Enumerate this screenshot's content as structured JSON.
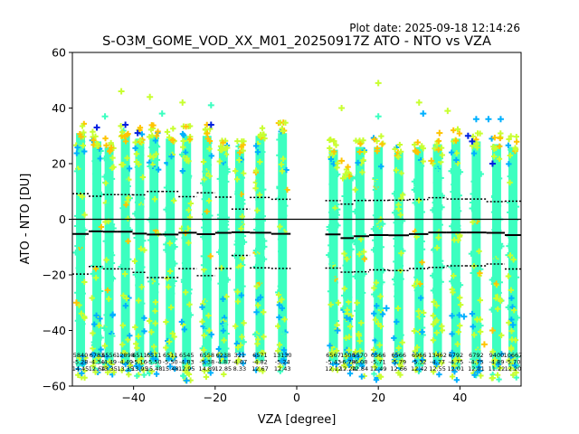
{
  "plot_date": "Plot date: 2025-09-18 12:14:26",
  "title": "S-O3M_GOME_VOD_XX_M01_20250917Z ATO - NTO vs VZA",
  "chart_data": {
    "type": "scatter",
    "title": "S-O3M_GOME_VOD_XX_M01_20250917Z ATO - NTO vs VZA",
    "xlabel": "VZA [degree]",
    "ylabel": "ATO - NTO [DU]",
    "xlim": [
      -55,
      55
    ],
    "ylim": [
      -60,
      60
    ],
    "xticks": [
      -40,
      -20,
      0,
      20,
      40
    ],
    "yticks": [
      -60,
      -40,
      -20,
      0,
      20,
      40,
      60
    ],
    "grid": false,
    "zero_line": 0,
    "marker": "+",
    "colors": {
      "dense": "#3cffc0",
      "medium": "#c8ff30",
      "sparse_warm": "#ffc400",
      "sparse_cool": "#00b0ff",
      "rare": "#0020e0",
      "mean_line": "#000000"
    },
    "bins": [
      {
        "x": -53,
        "n": "5840",
        "mean": -5.28,
        "std": 14.45,
        "ymin": -57,
        "ymax": 35
      },
      {
        "x": -49,
        "n": "6783",
        "mean": -4.34,
        "std": 12.64,
        "ymin": -56,
        "ymax": 32
      },
      {
        "x": -46,
        "n": "6556",
        "mean": -4.49,
        "std": 13.35,
        "ymin": -56,
        "ymax": 30
      },
      {
        "x": -42,
        "n": "12898",
        "mean": -4.49,
        "std": 13.35,
        "ymin": -56,
        "ymax": 34
      },
      {
        "x": -38.5,
        "n": "6511",
        "mean": -5.16,
        "std": 13.95,
        "ymin": -57,
        "ymax": 33
      },
      {
        "x": -35,
        "n": "6511",
        "mean": -5.5,
        "std": 15.48,
        "ymin": -56,
        "ymax": 34
      },
      {
        "x": -31,
        "n": "6511",
        "mean": -5.5,
        "std": 15.48,
        "ymin": -55,
        "ymax": 33
      },
      {
        "x": -27,
        "n": "6545",
        "mean": -4.83,
        "std": 12.95,
        "ymin": -58,
        "ymax": 34
      },
      {
        "x": -22,
        "n": "6558",
        "mean": -5.38,
        "std": 14.89,
        "ymin": -57,
        "ymax": 34
      },
      {
        "x": -18,
        "n": "6238",
        "mean": -4.87,
        "std": 12.85,
        "ymin": -56,
        "ymax": 30
      },
      {
        "x": -14,
        "n": "321",
        "mean": -4.67,
        "std": 8.33,
        "ymin": -52,
        "ymax": 29
      },
      {
        "x": -9,
        "n": "6571",
        "mean": -4.82,
        "std": 12.67,
        "ymin": -55,
        "ymax": 34
      },
      {
        "x": -3.5,
        "n": "13130",
        "mean": -5.24,
        "std": 12.43,
        "ymin": -55,
        "ymax": 35
      },
      {
        "x": 9,
        "n": "6567",
        "mean": -5.43,
        "std": 12.12,
        "ymin": -55,
        "ymax": 29
      },
      {
        "x": 12.5,
        "n": "1500",
        "mean": -6.78,
        "std": 12.24,
        "ymin": -56,
        "ymax": 20
      },
      {
        "x": 15.5,
        "n": "5570",
        "mean": -6.08,
        "std": 12.84,
        "ymin": -57,
        "ymax": 30
      },
      {
        "x": 20,
        "n": "6566",
        "mean": -5.71,
        "std": 12.49,
        "ymin": -58,
        "ymax": 30
      },
      {
        "x": 25,
        "n": "6566",
        "mean": -5.79,
        "std": 12.66,
        "ymin": -56,
        "ymax": 28
      },
      {
        "x": 30,
        "n": "6966",
        "mean": -5.32,
        "std": 12.42,
        "ymin": -57,
        "ymax": 30
      },
      {
        "x": 34.5,
        "n": "13462",
        "mean": -4.77,
        "std": 12.55,
        "ymin": -56,
        "ymax": 31
      },
      {
        "x": 39,
        "n": "6792",
        "mean": -4.75,
        "std": 12.01,
        "ymin": -58,
        "ymax": 33
      },
      {
        "x": 44,
        "n": "6792",
        "mean": -4.75,
        "std": 12.01,
        "ymin": -58,
        "ymax": 32
      },
      {
        "x": 49,
        "n": "9400",
        "mean": -4.89,
        "std": 11.22,
        "ymin": -58,
        "ymax": 31
      },
      {
        "x": 53,
        "n": "10667",
        "mean": -5.7,
        "std": 12.2,
        "ymin": -57,
        "ymax": 30
      }
    ],
    "outliers": [
      {
        "x": -43,
        "y": 46,
        "c": "medium"
      },
      {
        "x": -36,
        "y": 44,
        "c": "medium"
      },
      {
        "x": -28,
        "y": 42,
        "c": "medium"
      },
      {
        "x": -21,
        "y": 41,
        "c": "dense"
      },
      {
        "x": -47,
        "y": 37,
        "c": "dense"
      },
      {
        "x": 11,
        "y": 40,
        "c": "medium"
      },
      {
        "x": 20,
        "y": 49,
        "c": "medium"
      },
      {
        "x": 30,
        "y": 42,
        "c": "medium"
      },
      {
        "x": 31,
        "y": 38,
        "c": "sparse_cool"
      },
      {
        "x": 37,
        "y": 39,
        "c": "medium"
      },
      {
        "x": 44,
        "y": 36,
        "c": "sparse_cool"
      },
      {
        "x": 47,
        "y": 36,
        "c": "sparse_cool"
      },
      {
        "x": 50,
        "y": 36,
        "c": "sparse_cool"
      },
      {
        "x": 20,
        "y": 37,
        "c": "dense"
      },
      {
        "x": -33,
        "y": 38,
        "c": "dense"
      },
      {
        "x": 43,
        "y": 28,
        "c": "rare"
      },
      {
        "x": 42,
        "y": 30,
        "c": "rare"
      },
      {
        "x": 48,
        "y": 20,
        "c": "rare"
      },
      {
        "x": -21,
        "y": 34,
        "c": "rare"
      },
      {
        "x": -42,
        "y": 34,
        "c": "rare"
      },
      {
        "x": -49,
        "y": 33,
        "c": "rare"
      },
      {
        "x": -39,
        "y": 31,
        "c": "rare"
      },
      {
        "x": 35,
        "y": 31,
        "c": "sparse_warm"
      },
      {
        "x": 33,
        "y": 21,
        "c": "sparse_warm"
      },
      {
        "x": 11,
        "y": 21,
        "c": "sparse_warm"
      },
      {
        "x": 46,
        "y": -45,
        "c": "sparse_warm"
      },
      {
        "x": 48,
        "y": -40,
        "c": "sparse_warm"
      },
      {
        "x": -54,
        "y": -30,
        "c": "sparse_warm"
      },
      {
        "x": 53,
        "y": -38,
        "c": "sparse_cool"
      },
      {
        "x": 41,
        "y": -35,
        "c": "sparse_cool"
      },
      {
        "x": -27,
        "y": -58,
        "c": "sparse_cool"
      },
      {
        "x": 34,
        "y": -37,
        "c": "medium"
      },
      {
        "x": 10,
        "y": -40,
        "c": "sparse_cool"
      },
      {
        "x": 22,
        "y": -32,
        "c": "sparse_cool"
      }
    ]
  }
}
